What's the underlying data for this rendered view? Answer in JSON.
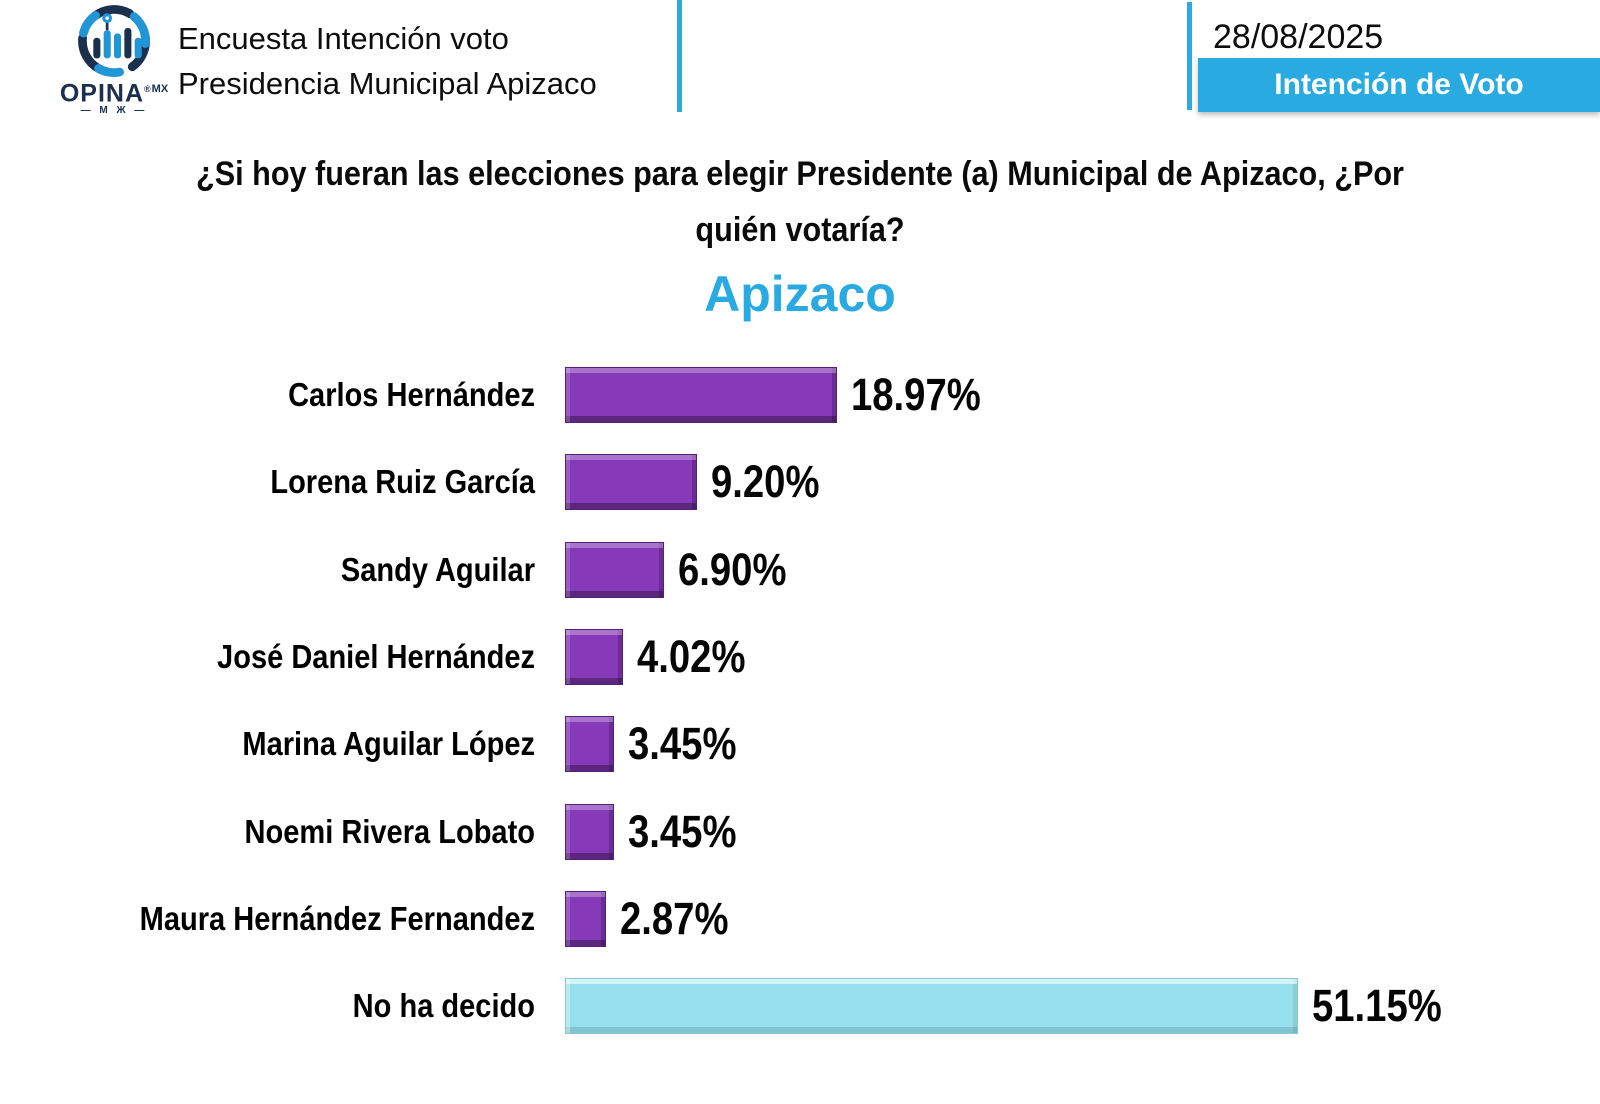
{
  "header": {
    "brand": {
      "name": "OPINA",
      "reg": "®",
      "suffix": "MX",
      "subtext": "—  М Ж  —"
    },
    "title_line1": "Encuesta Intención voto",
    "title_line2": "Presidencia Municipal Apizaco",
    "date": "28/08/2025",
    "badge": "Intención de Voto"
  },
  "question": {
    "line1": "¿Si hoy fueran las elecciones para elegir Presidente (a) Municipal de Apizaco, ¿Por",
    "line2": "quién votaría?"
  },
  "chart_data": {
    "type": "bar",
    "orientation": "horizontal",
    "title": "Apizaco",
    "categories": [
      "Carlos Hernández",
      "Lorena Ruiz García",
      "Sandy Aguilar",
      "José Daniel Hernández",
      "Marina Aguilar López",
      "Noemi Rivera Lobato",
      "Maura Hernández Fernandez",
      "No ha decido"
    ],
    "values": [
      18.97,
      9.2,
      6.9,
      4.02,
      3.45,
      3.45,
      2.87,
      51.15
    ],
    "value_labels": [
      "18.97%",
      "9.20%",
      "6.90%",
      "4.02%",
      "3.45%",
      "3.45%",
      "2.87%",
      "51.15%"
    ],
    "bar_colors": [
      "#8639b8",
      "#8639b8",
      "#8639b8",
      "#8639b8",
      "#8639b8",
      "#8639b8",
      "#8639b8",
      "#95e0ec"
    ],
    "highlight_index": 7,
    "xlim": [
      0,
      55
    ],
    "grid": false,
    "legend": false,
    "value_label_position": "end"
  },
  "colors": {
    "accent_cyan": "#29abe2",
    "bar_purple": "#8639b8",
    "bar_cyan": "#95e0ec",
    "logo_navy": "#1b2f4e",
    "logo_blue": "#2196d6",
    "title_cyan": "#29abe2",
    "text_black": "#000000",
    "badge_text": "#ffffff"
  }
}
